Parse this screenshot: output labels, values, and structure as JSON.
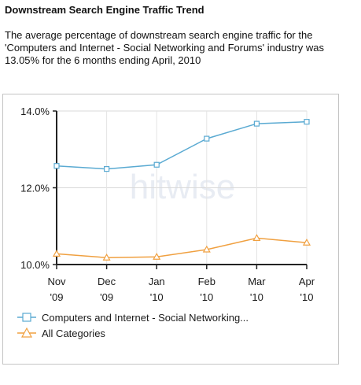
{
  "header": {
    "title": "Downstream Search Engine Traffic Trend",
    "description": "The average percentage of downstream search engine traffic for the 'Computers and Internet - Social Networking and Forums' industry was 13.05% for the 6 months ending April, 2010"
  },
  "watermark": "hitwise",
  "chart_data": {
    "type": "line",
    "categories": [
      [
        "Nov",
        "'09"
      ],
      [
        "Dec",
        "'09"
      ],
      [
        "Jan",
        "'10"
      ],
      [
        "Feb",
        "'10"
      ],
      [
        "Mar",
        "'10"
      ],
      [
        "Apr",
        "'10"
      ]
    ],
    "ylim": [
      10.0,
      14.0
    ],
    "yticks": [
      10.0,
      12.0,
      14.0
    ],
    "ytick_labels": [
      "10.0%",
      "12.0%",
      "14.0%"
    ],
    "grid": true,
    "legend_position": "bottom",
    "series": [
      {
        "name": "Computers and Internet - Social Networking...",
        "color": "#5aaad2",
        "marker": "square",
        "values": [
          12.57,
          12.49,
          12.6,
          13.28,
          13.67,
          13.72
        ]
      },
      {
        "name": "All Categories",
        "color": "#f0a040",
        "marker": "triangle",
        "values": [
          10.28,
          10.18,
          10.2,
          10.39,
          10.69,
          10.57
        ]
      }
    ]
  }
}
